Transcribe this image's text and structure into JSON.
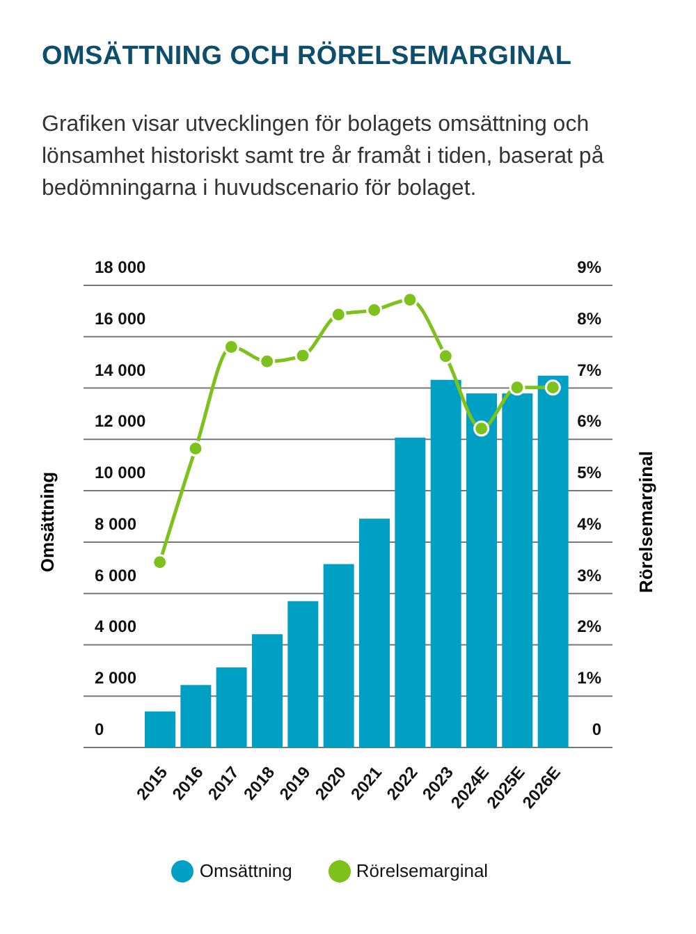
{
  "chart_data": {
    "type": "bar",
    "title": "OMSÄTTNING OCH RÖRELSEMARGINAL",
    "subtitle": "Grafiken visar utvecklingen för bolagets omsättning och lönsamhet historiskt samt tre år framåt i tiden, baserat på bedömningarna i huvudscenario för bolaget.",
    "ylabel": "Omsättning",
    "y2label": "Rörelsemarginal",
    "categories": [
      "2015",
      "2016",
      "2017",
      "2018",
      "2019",
      "2020",
      "2021",
      "2022",
      "2023",
      "2024E",
      "2025E",
      "2026E"
    ],
    "series": [
      {
        "name": "Omsättning",
        "color": "#00a0c4",
        "values": [
          1400,
          2430,
          3120,
          4410,
          5700,
          7140,
          8910,
          12070,
          14320,
          13790,
          13790,
          14480
        ]
      },
      {
        "name": "Rörelsemarginal",
        "type": "line",
        "axis": "y2",
        "color": "#7cc21b",
        "marker": "circle",
        "values": [
          3.61,
          5.82,
          7.8,
          7.52,
          7.63,
          8.43,
          8.52,
          8.72,
          7.62,
          6.21,
          7.01,
          7.01
        ]
      }
    ],
    "ylim": [
      0,
      18000
    ],
    "yticks": [
      0,
      {
        "value": 2000,
        "label": "2 000"
      },
      {
        "value": 4000,
        "label": "4 000"
      },
      {
        "value": 6000,
        "label": "6 000"
      },
      {
        "value": 8000,
        "label": "8 000"
      },
      {
        "value": 10000,
        "label": "10 000"
      },
      {
        "value": 12000,
        "label": "12 000"
      },
      {
        "value": 14000,
        "label": "14 000"
      },
      {
        "value": 16000,
        "label": "16 000"
      },
      {
        "value": 18000,
        "label": "18 000"
      }
    ],
    "y2lim": [
      0,
      9
    ],
    "y2ticks": [
      0,
      {
        "value": 1,
        "label": "1%"
      },
      {
        "value": 2,
        "label": "2%"
      },
      {
        "value": 3,
        "label": "3%"
      },
      {
        "value": 4,
        "label": "4%"
      },
      {
        "value": 5,
        "label": "5%"
      },
      {
        "value": 6,
        "label": "6%"
      },
      {
        "value": 7,
        "label": "7%"
      },
      {
        "value": 8,
        "label": "8%"
      },
      {
        "value": 9,
        "label": "9%"
      }
    ],
    "grid": "y",
    "legend": "bottom"
  }
}
